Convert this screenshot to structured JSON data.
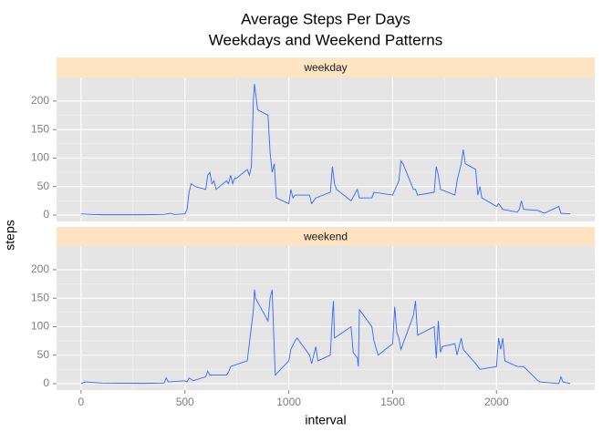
{
  "chart_data": [
    {
      "type": "line",
      "title": [
        "Average Steps Per Days",
        "Weekdays and Weekend Patterns"
      ],
      "y_label": "steps",
      "panel_label": "weekday",
      "color": "#3366ff",
      "strip_color": "#ffe4c4",
      "grid": true,
      "xlim": [
        -118,
        2473
      ],
      "ylim": [
        -11.3,
        241.5
      ],
      "xticks": [
        0,
        500,
        1000,
        1500,
        2000
      ],
      "yticks": [
        0,
        50,
        100,
        150,
        200
      ],
      "x": [
        0,
        50,
        100,
        200,
        300,
        400,
        430,
        450,
        500,
        510,
        520,
        530,
        550,
        600,
        610,
        620,
        630,
        640,
        650,
        700,
        710,
        720,
        730,
        740,
        750,
        800,
        810,
        820,
        830,
        835,
        840,
        850,
        900,
        910,
        920,
        930,
        935,
        940,
        1000,
        1010,
        1020,
        1030,
        1100,
        1110,
        1130,
        1200,
        1210,
        1220,
        1230,
        1300,
        1330,
        1340,
        1400,
        1410,
        1500,
        1530,
        1540,
        1550,
        1600,
        1610,
        1620,
        1700,
        1710,
        1720,
        1730,
        1800,
        1810,
        1830,
        1840,
        1850,
        1900,
        1910,
        1920,
        1930,
        2000,
        2010,
        2030,
        2100,
        2110,
        2120,
        2130,
        2200,
        2230,
        2300,
        2310,
        2355
      ],
      "values": [
        2,
        1,
        0.5,
        0.5,
        0.5,
        1,
        3,
        1,
        2,
        10,
        40,
        55,
        50,
        45,
        70,
        75,
        55,
        60,
        45,
        60,
        55,
        70,
        55,
        65,
        65,
        80,
        70,
        85,
        205,
        230,
        215,
        185,
        175,
        110,
        75,
        90,
        60,
        30,
        20,
        45,
        30,
        35,
        35,
        20,
        30,
        40,
        85,
        55,
        45,
        25,
        45,
        30,
        30,
        40,
        35,
        60,
        95,
        90,
        45,
        45,
        35,
        40,
        85,
        70,
        45,
        35,
        60,
        90,
        115,
        90,
        80,
        35,
        50,
        30,
        15,
        20,
        10,
        5,
        10,
        25,
        10,
        8,
        3,
        15,
        3,
        2
      ]
    },
    {
      "type": "line",
      "x_label": "interval",
      "panel_label": "weekend",
      "color": "#3366ff",
      "strip_color": "#ffe4c4",
      "grid": true,
      "xlim": [
        -118,
        2473
      ],
      "ylim": [
        -11.3,
        241.5
      ],
      "xticks": [
        0,
        500,
        1000,
        1500,
        2000
      ],
      "yticks": [
        0,
        50,
        100,
        150,
        200
      ],
      "x": [
        0,
        20,
        100,
        300,
        400,
        410,
        420,
        500,
        510,
        520,
        540,
        600,
        610,
        620,
        700,
        710,
        720,
        800,
        810,
        830,
        835,
        840,
        900,
        910,
        920,
        930,
        935,
        1000,
        1010,
        1030,
        1040,
        1100,
        1110,
        1130,
        1140,
        1200,
        1210,
        1215,
        1220,
        1300,
        1310,
        1330,
        1335,
        1340,
        1400,
        1410,
        1430,
        1500,
        1510,
        1520,
        1530,
        1540,
        1600,
        1610,
        1620,
        1700,
        1710,
        1720,
        1730,
        1740,
        1800,
        1810,
        1830,
        1840,
        1900,
        1920,
        2000,
        2010,
        2020,
        2030,
        2040,
        2100,
        2130,
        2200,
        2210,
        2300,
        2310,
        2320,
        2355
      ],
      "values": [
        0,
        3,
        1,
        0.5,
        1,
        10,
        3,
        5,
        3,
        10,
        5,
        12,
        22,
        15,
        15,
        20,
        30,
        40,
        70,
        130,
        165,
        150,
        110,
        150,
        165,
        60,
        15,
        40,
        60,
        75,
        80,
        50,
        35,
        65,
        40,
        50,
        120,
        145,
        80,
        100,
        55,
        45,
        30,
        130,
        100,
        75,
        50,
        70,
        135,
        90,
        80,
        60,
        120,
        145,
        85,
        100,
        45,
        110,
        55,
        65,
        70,
        50,
        80,
        60,
        35,
        25,
        30,
        80,
        60,
        80,
        40,
        30,
        30,
        5,
        3,
        0,
        12,
        3,
        0
      ]
    }
  ]
}
